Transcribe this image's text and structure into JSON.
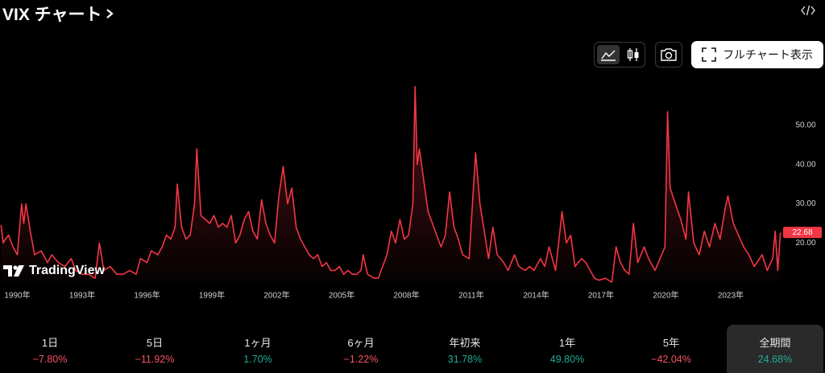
{
  "header": {
    "title": "VIX チャート"
  },
  "toolbar": {
    "full_chart_button": "フルチャート表示"
  },
  "logo": "TradingView",
  "chart_data": {
    "type": "line",
    "x": [
      1989.25,
      1989.35,
      1989.45,
      1989.6,
      1989.8,
      1990.0,
      1990.2,
      1990.3,
      1990.4,
      1990.6,
      1990.8,
      1991.1,
      1991.4,
      1991.6,
      1991.9,
      1992.2,
      1992.5,
      1992.7,
      1993.0,
      1993.3,
      1993.6,
      1993.8,
      1994.0,
      1994.3,
      1994.6,
      1994.9,
      1995.2,
      1995.5,
      1995.7,
      1996.0,
      1996.2,
      1996.5,
      1996.7,
      1996.9,
      1997.1,
      1997.3,
      1997.4,
      1997.6,
      1997.8,
      1998.0,
      1998.2,
      1998.3,
      1998.5,
      1998.7,
      1998.9,
      1999.1,
      1999.3,
      1999.5,
      1999.7,
      1999.9,
      2000.1,
      2000.3,
      2000.5,
      2000.7,
      2000.9,
      2001.1,
      2001.3,
      2001.5,
      2001.7,
      2001.9,
      2002.1,
      2002.3,
      2002.5,
      2002.7,
      2002.9,
      2003.1,
      2003.3,
      2003.5,
      2003.7,
      2003.9,
      2004.1,
      2004.3,
      2004.5,
      2004.7,
      2004.9,
      2005.1,
      2005.3,
      2005.5,
      2005.7,
      2005.9,
      2006.0,
      2006.2,
      2006.5,
      2006.7,
      2006.9,
      2007.1,
      2007.3,
      2007.5,
      2007.7,
      2007.9,
      2008.1,
      2008.3,
      2008.4,
      2008.5,
      2008.6,
      2008.8,
      2009.0,
      2009.2,
      2009.4,
      2009.6,
      2009.8,
      2010.0,
      2010.2,
      2010.4,
      2010.6,
      2010.9,
      2011.2,
      2011.4,
      2011.6,
      2011.8,
      2012.0,
      2012.2,
      2012.5,
      2012.7,
      2013.0,
      2013.2,
      2013.5,
      2013.7,
      2013.9,
      2014.2,
      2014.4,
      2014.6,
      2014.9,
      2015.2,
      2015.4,
      2015.6,
      2015.8,
      2016.1,
      2016.3,
      2016.5,
      2016.7,
      2016.9,
      2017.2,
      2017.5,
      2017.7,
      2017.9,
      2018.1,
      2018.3,
      2018.5,
      2018.7,
      2019.0,
      2019.2,
      2019.5,
      2019.96,
      2020.08,
      2020.2,
      2020.44,
      2020.69,
      2020.93,
      2021.05,
      2021.29,
      2021.54,
      2021.78,
      2022.02,
      2022.27,
      2022.51,
      2022.75,
      2022.87,
      2023.12,
      2023.36,
      2023.6,
      2023.84,
      2024.09,
      2024.45,
      2024.69,
      2024.94,
      2025.06,
      2025.18,
      2025.3
    ],
    "series": [
      {
        "name": "VIX",
        "color": "#f23645",
        "values": [
          24.6,
          20,
          21,
          22,
          19,
          17,
          30,
          25,
          30,
          23,
          17,
          18,
          15,
          17,
          15,
          14,
          16,
          13,
          12,
          12,
          11,
          20,
          13,
          14,
          12,
          12,
          13,
          12,
          16,
          15,
          18,
          17,
          19,
          22,
          21,
          24,
          35,
          24,
          21,
          22,
          30,
          44,
          27,
          26,
          25,
          27,
          24,
          25,
          24,
          27,
          20,
          22,
          26,
          28,
          23,
          21,
          31,
          25,
          22,
          20,
          32,
          39.5,
          30,
          34,
          24,
          21,
          19,
          17,
          16,
          17,
          14,
          15,
          13,
          13,
          14,
          12,
          13,
          12,
          12,
          13,
          17,
          12,
          11,
          11,
          14,
          17,
          23,
          20,
          26,
          21,
          22,
          30,
          59.9,
          40,
          44,
          36,
          28,
          25,
          22,
          19,
          22,
          33,
          24,
          21,
          17,
          16,
          43,
          30,
          23,
          16,
          24,
          17,
          15,
          13,
          17,
          14,
          13,
          14,
          13,
          16,
          14,
          19,
          13,
          28,
          20,
          22,
          14,
          16,
          15,
          13,
          11,
          10.5,
          11,
          10,
          19,
          15,
          13,
          12,
          25,
          15,
          19,
          16,
          13,
          19,
          53.5,
          34,
          30,
          26,
          21,
          33,
          20,
          17,
          23,
          19,
          25,
          21,
          29,
          32,
          25,
          22,
          19,
          17,
          14,
          17,
          13,
          16,
          23,
          13,
          22.68
        ]
      }
    ],
    "last_label": "22.68",
    "xlim": [
      1989.2,
      2025.35
    ],
    "xticks": [
      {
        "value": 1990,
        "label": "1990年"
      },
      {
        "value": 1993,
        "label": "1993年"
      },
      {
        "value": 1996,
        "label": "1996年"
      },
      {
        "value": 1999,
        "label": "1999年"
      },
      {
        "value": 2002,
        "label": "2002年"
      },
      {
        "value": 2005,
        "label": "2005年"
      },
      {
        "value": 2008,
        "label": "2008年"
      },
      {
        "value": 2011,
        "label": "2011年"
      },
      {
        "value": 2014,
        "label": "2014年"
      },
      {
        "value": 2017,
        "label": "2017年"
      },
      {
        "value": 2020,
        "label": "2020年"
      },
      {
        "value": 2023,
        "label": "2023年"
      }
    ],
    "ylim": [
      10,
      62.5
    ],
    "yticks": [
      {
        "value": 20,
        "label": "20.00"
      },
      {
        "value": 30,
        "label": "30.00"
      },
      {
        "value": 40,
        "label": "40.00"
      },
      {
        "value": 50,
        "label": "50.00"
      }
    ],
    "grid": false
  },
  "periods": [
    {
      "label": "1日",
      "change": "−7.80%"
    },
    {
      "label": "5日",
      "change": "−11.92%"
    },
    {
      "label": "1ヶ月",
      "change": "1.70%"
    },
    {
      "label": "6ヶ月",
      "change": "−1.22%"
    },
    {
      "label": "年初来",
      "change": "31.78%"
    },
    {
      "label": "1年",
      "change": "49.80%"
    },
    {
      "label": "5年",
      "change": "−42.04%"
    },
    {
      "label": "全期間",
      "change": "24.68%",
      "selected": true
    }
  ]
}
